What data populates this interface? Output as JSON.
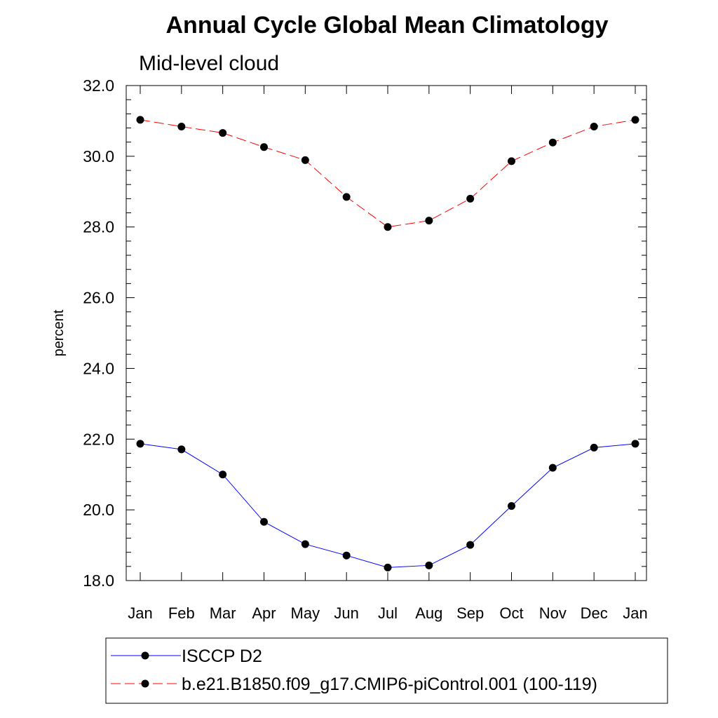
{
  "chart_data": {
    "type": "line",
    "title": "Annual Cycle Global Mean Climatology",
    "subtitle": "Mid-level cloud",
    "xlabel": "",
    "ylabel": "percent",
    "categories": [
      "Jan",
      "Feb",
      "Mar",
      "Apr",
      "May",
      "Jun",
      "Jul",
      "Aug",
      "Sep",
      "Oct",
      "Nov",
      "Dec",
      "Jan"
    ],
    "ylim": [
      18.0,
      32.0
    ],
    "yticks": [
      "18.0",
      "20.0",
      "22.0",
      "24.0",
      "26.0",
      "28.0",
      "30.0",
      "32.0"
    ],
    "grid": false,
    "legend_position": "bottom",
    "series": [
      {
        "name": "ISCCP D2",
        "color": "#0000ff",
        "dash": "solid",
        "marker": "filled-circle",
        "values": [
          21.87,
          21.71,
          21.0,
          19.66,
          19.03,
          18.71,
          18.37,
          18.43,
          19.01,
          20.11,
          21.19,
          21.76,
          21.87
        ]
      },
      {
        "name": "b.e21.B1850.f09_g17.CMIP6-piControl.001 (100-119)",
        "color": "#ff0000",
        "dash": "dashed",
        "marker": "filled-circle",
        "values": [
          31.03,
          30.84,
          30.66,
          30.26,
          29.89,
          28.85,
          28.0,
          28.18,
          28.8,
          29.86,
          30.39,
          30.84,
          31.03
        ]
      }
    ]
  }
}
